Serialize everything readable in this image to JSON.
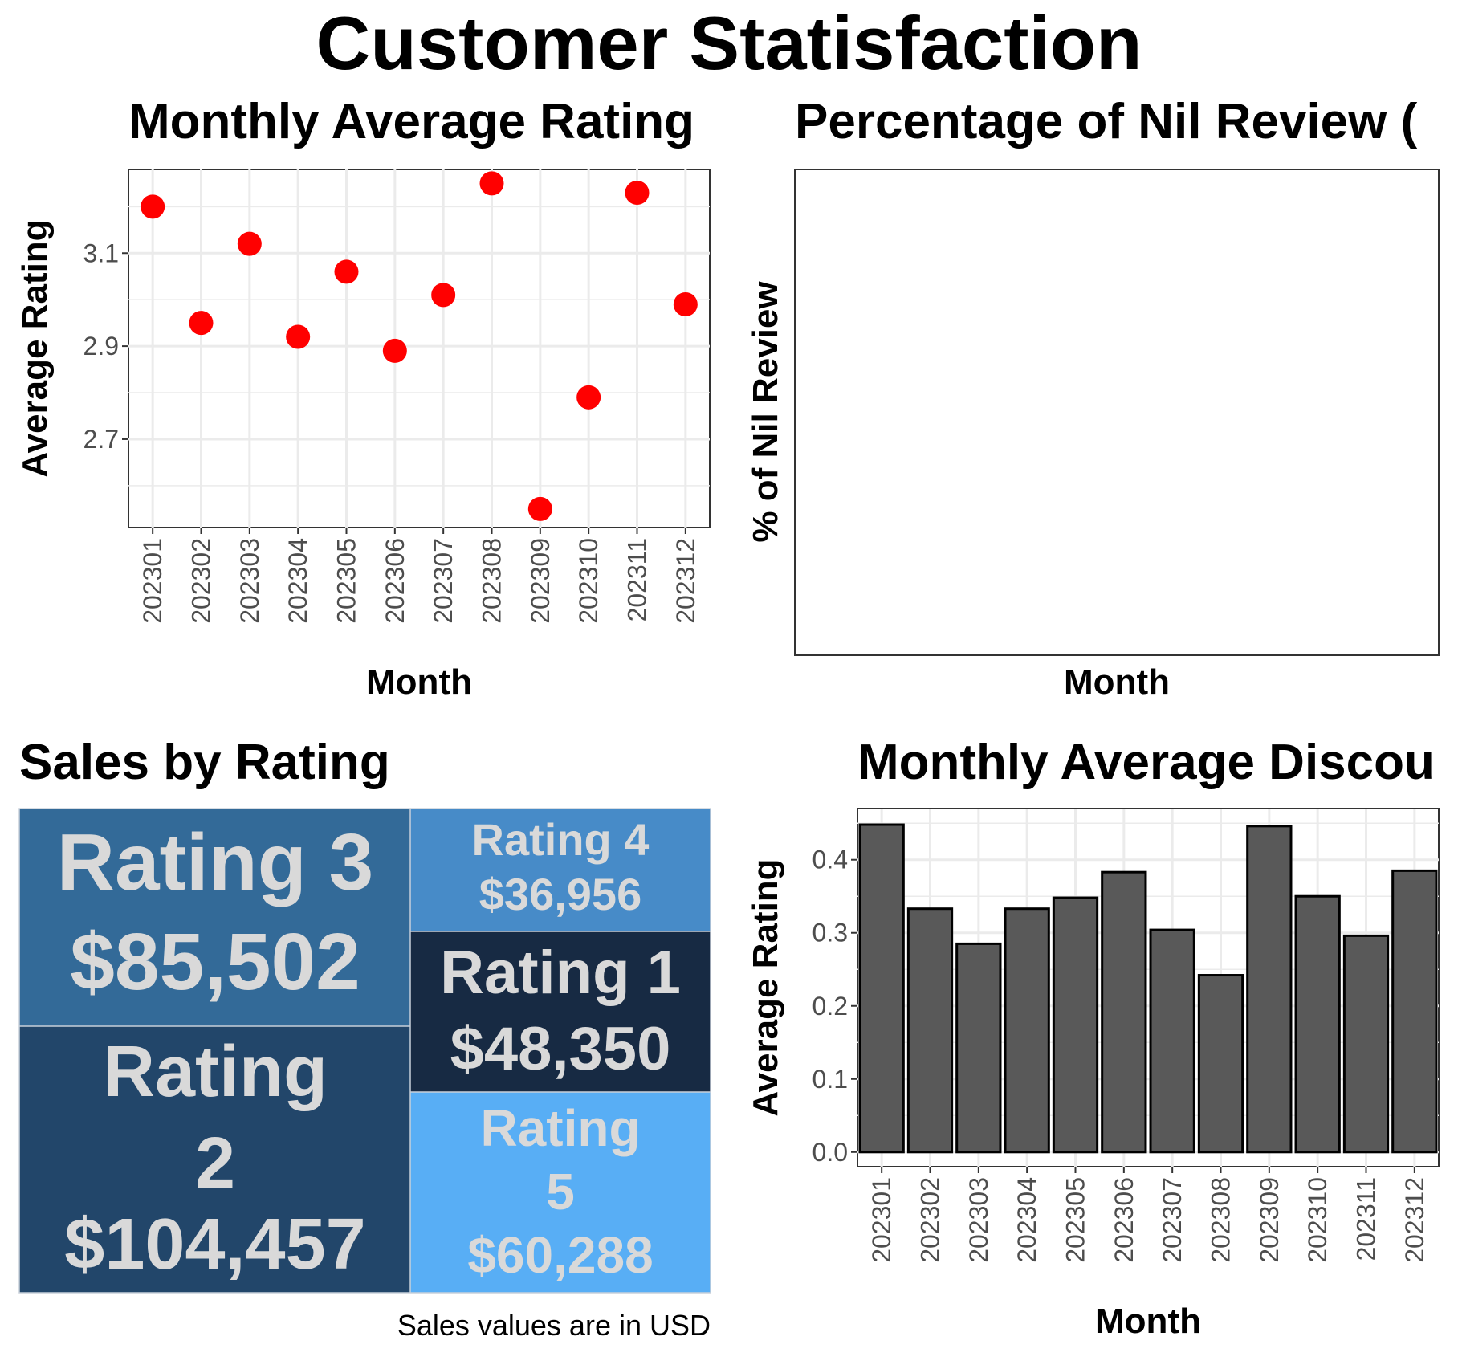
{
  "title": "Customer Statisfaction",
  "chart_data": [
    {
      "id": "rating_scatter",
      "type": "scatter",
      "title": "Monthly Average Rating",
      "xlabel": "Month",
      "ylabel": "Average Rating",
      "categories": [
        "202301",
        "202302",
        "202303",
        "202304",
        "202305",
        "202306",
        "202307",
        "202308",
        "202309",
        "202310",
        "202311",
        "202312"
      ],
      "values": [
        3.2,
        2.95,
        3.12,
        2.92,
        3.06,
        2.89,
        3.01,
        3.25,
        2.55,
        2.79,
        3.23,
        2.99
      ],
      "ylim": [
        2.51,
        3.28
      ],
      "yticks": [
        2.7,
        2.9,
        3.1
      ],
      "ytick_labels": [
        "2.7",
        "2.9",
        "3.1"
      ],
      "grid": true,
      "point_color": "#ff0000"
    },
    {
      "id": "nil_review",
      "type": "line",
      "title": "Percentage of Nil Review (",
      "xlabel": "Month",
      "ylabel": "% of Nil Review",
      "categories": [],
      "values": [],
      "grid": false
    },
    {
      "id": "sales_treemap",
      "type": "treemap",
      "title": "Sales by Rating",
      "caption": "Sales values are in USD",
      "items": [
        {
          "label": "Rating 3",
          "value": "$85,502",
          "color": "#336a98"
        },
        {
          "label": "Rating 2",
          "value": "$104,457",
          "color": "#22466a"
        },
        {
          "label": "Rating 4",
          "value": "$36,956",
          "color": "#478bc8"
        },
        {
          "label": "Rating 1",
          "value": "$48,350",
          "color": "#172a43"
        },
        {
          "label": "Rating 5",
          "value": "$60,288",
          "color": "#58aef5"
        }
      ]
    },
    {
      "id": "discount_bars",
      "type": "bar",
      "title": "Monthly Average Discou",
      "xlabel": "Month",
      "ylabel": "Average Rating",
      "categories": [
        "202301",
        "202302",
        "202303",
        "202304",
        "202305",
        "202306",
        "202307",
        "202308",
        "202309",
        "202310",
        "202311",
        "202312"
      ],
      "values": [
        0.448,
        0.333,
        0.285,
        0.333,
        0.348,
        0.383,
        0.304,
        0.242,
        0.446,
        0.35,
        0.296,
        0.385
      ],
      "ylim": [
        -0.02,
        0.47
      ],
      "yticks": [
        0.0,
        0.1,
        0.2,
        0.3,
        0.4
      ],
      "ytick_labels": [
        "0.0",
        "0.1",
        "0.2",
        "0.3",
        "0.4"
      ],
      "grid": true,
      "bar_color": "#595959"
    }
  ]
}
